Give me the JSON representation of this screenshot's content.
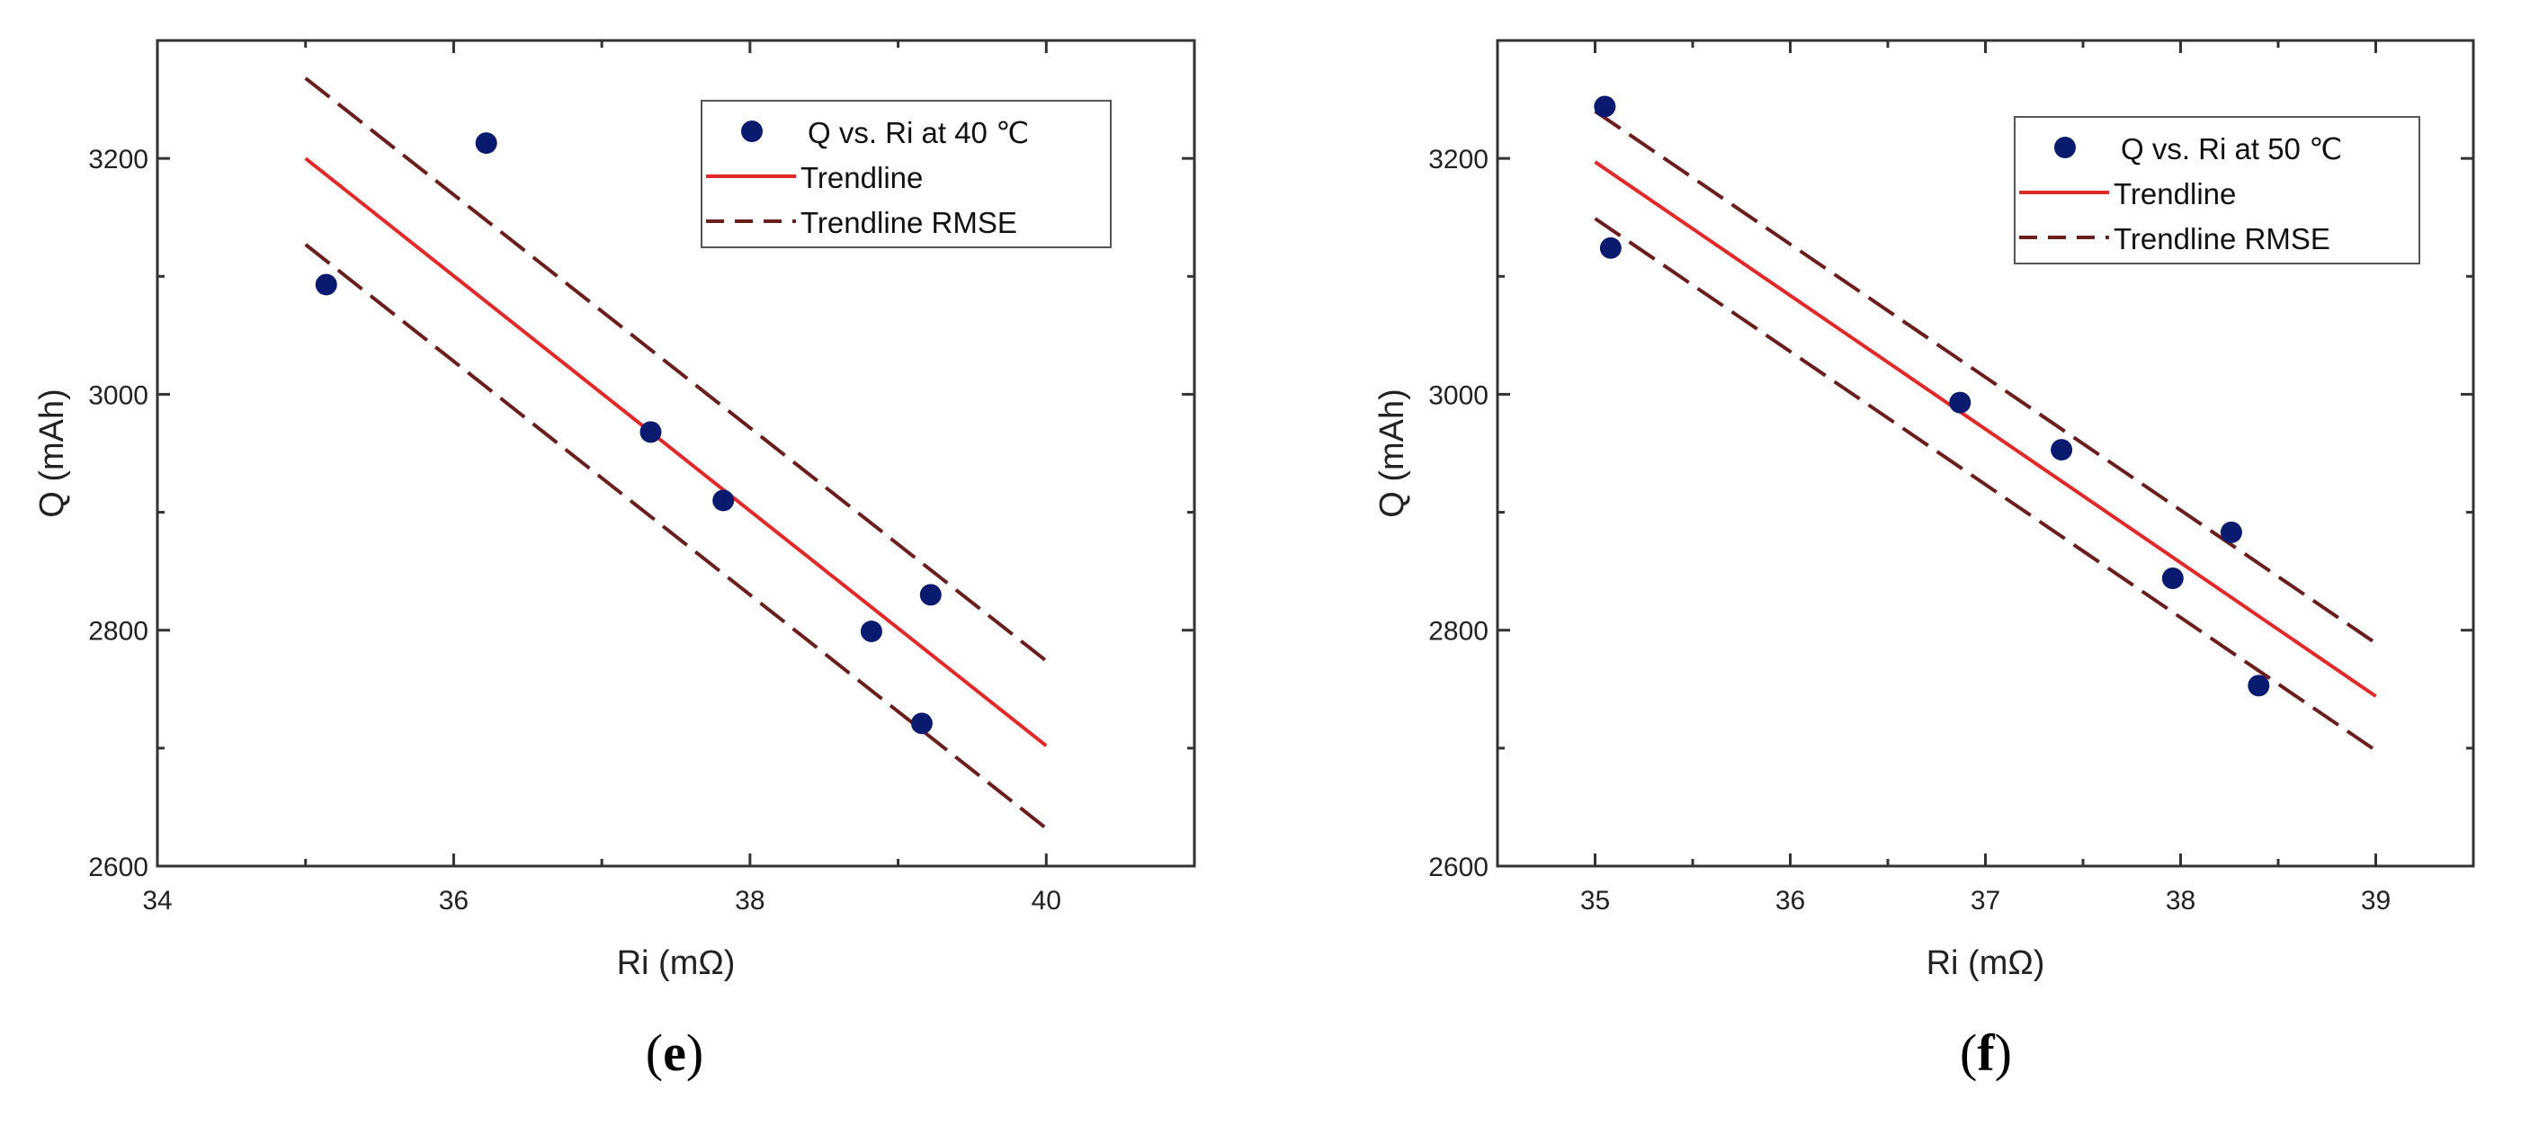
{
  "colors": {
    "points": "#0a1a6e",
    "trend": "#e02a2a",
    "rmse": "#6b1e1e",
    "axis": "#333333"
  },
  "chart_data": [
    {
      "type": "scatter",
      "panel_label": "e",
      "xlabel": "Ri (mΩ)",
      "ylabel": "Q (mAh)",
      "xlim": [
        34,
        41
      ],
      "ylim": [
        2600,
        3300
      ],
      "xticks": [
        34,
        36,
        38,
        40
      ],
      "yticks": [
        2600,
        2800,
        3000,
        3200
      ],
      "xminor": 1,
      "yminor": 100,
      "legend_position": "top-right",
      "legend": [
        "Q vs. Ri at 40 ℃",
        "Trendline",
        "Trendline RMSE"
      ],
      "points": {
        "x": [
          35.14,
          36.22,
          37.33,
          37.82,
          38.82,
          39.16,
          39.22
        ],
        "y": [
          3093,
          3213,
          2968,
          2910,
          2799,
          2721,
          2830
        ]
      },
      "trendline": {
        "x": [
          35,
          40
        ],
        "y": [
          3200,
          2702
        ]
      },
      "rmse_upper": {
        "x": [
          35,
          40
        ],
        "y": [
          3268,
          2774
        ]
      },
      "rmse_lower": {
        "x": [
          35,
          40
        ],
        "y": [
          3127,
          2632
        ]
      }
    },
    {
      "type": "scatter",
      "panel_label": "f",
      "xlabel": "Ri (mΩ)",
      "ylabel": "Q (mAh)",
      "xlim": [
        34.5,
        39.5
      ],
      "ylim": [
        2600,
        3300
      ],
      "xticks": [
        35,
        36,
        37,
        38,
        39
      ],
      "yticks": [
        2600,
        2800,
        3000,
        3200
      ],
      "xminor": 0.5,
      "yminor": 100,
      "legend_position": "top-right",
      "legend": [
        "Q vs. Ri at 50 ℃",
        "Trendline",
        "Trendline RMSE"
      ],
      "points": {
        "x": [
          35.05,
          35.08,
          36.87,
          37.39,
          37.96,
          38.26,
          38.4
        ],
        "y": [
          3244,
          3124,
          2993,
          2953,
          2844,
          2883,
          2753
        ]
      },
      "trendline": {
        "x": [
          35,
          39
        ],
        "y": [
          3197,
          2744
        ]
      },
      "rmse_upper": {
        "x": [
          35,
          39
        ],
        "y": [
          3240,
          2789
        ]
      },
      "rmse_lower": {
        "x": [
          35,
          39
        ],
        "y": [
          3149,
          2698
        ]
      }
    }
  ]
}
